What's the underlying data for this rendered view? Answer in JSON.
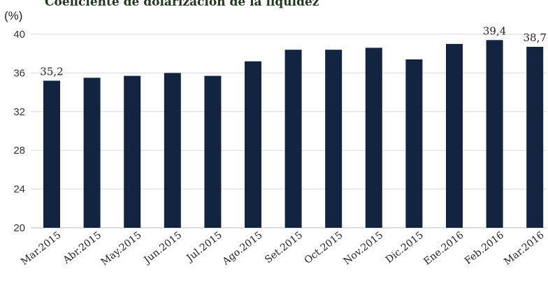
{
  "chart_data": {
    "type": "bar",
    "title": "Coeficiente de dolarización de la liquidez",
    "unit_label": "(%)",
    "categories": [
      "Mar.2015",
      "Abr.2015",
      "May.2015",
      "Jun.2015",
      "Jul.2015",
      "Ago.2015",
      "Set.2015",
      "Oct.2015",
      "Nov.2015",
      "Dic.2015",
      "Ene.2016",
      "Feb.2016",
      "Mar.2016"
    ],
    "values": [
      35.2,
      35.5,
      35.7,
      36.0,
      35.7,
      37.2,
      38.4,
      38.4,
      38.6,
      37.4,
      39.0,
      39.4,
      38.7
    ],
    "data_labels": [
      {
        "index": 0,
        "text": "35,2"
      },
      {
        "index": 11,
        "text": "39,4"
      },
      {
        "index": 12,
        "text": "38,7"
      }
    ],
    "yticks": [
      20,
      24,
      28,
      32,
      36,
      40
    ],
    "ylim": [
      20,
      40
    ],
    "grid": true,
    "legend": "none",
    "bar_color": "#12243f"
  }
}
